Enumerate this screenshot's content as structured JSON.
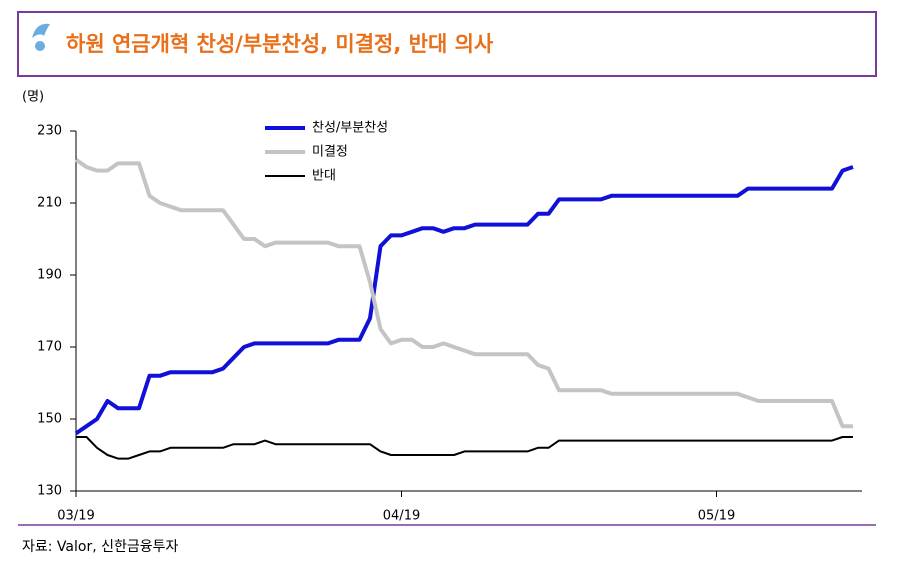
{
  "chart_data": {
    "type": "line",
    "title": "하원 연금개혁 찬성/부분찬성, 미결정, 반대 의사",
    "y_label": "(명)",
    "source": "자료: Valor, 신한금융투자",
    "categories": [
      "03/19",
      null,
      null,
      null,
      null,
      null,
      null,
      null,
      null,
      null,
      null,
      null,
      null,
      null,
      null,
      null,
      null,
      null,
      null,
      null,
      null,
      null,
      null,
      null,
      null,
      null,
      null,
      null,
      null,
      null,
      null,
      "04/19",
      null,
      null,
      null,
      null,
      null,
      null,
      null,
      null,
      null,
      null,
      null,
      null,
      null,
      null,
      null,
      null,
      null,
      null,
      null,
      null,
      null,
      null,
      null,
      null,
      null,
      null,
      null,
      null,
      null,
      "05/19",
      null,
      null,
      null,
      null,
      null,
      null,
      null,
      null,
      null,
      null,
      null,
      null,
      null
    ],
    "series": [
      {
        "name": "찬성/부분찬성",
        "color": "#1010d8",
        "width": 4,
        "values": [
          146,
          148,
          150,
          155,
          153,
          153,
          153,
          162,
          162,
          163,
          163,
          163,
          163,
          163,
          164,
          167,
          170,
          171,
          171,
          171,
          171,
          171,
          171,
          171,
          171,
          172,
          172,
          172,
          178,
          198,
          201,
          201,
          202,
          203,
          203,
          202,
          203,
          203,
          204,
          204,
          204,
          204,
          204,
          204,
          207,
          207,
          211,
          211,
          211,
          211,
          211,
          212,
          212,
          212,
          212,
          212,
          212,
          212,
          212,
          212,
          212,
          212,
          212,
          212,
          214,
          214,
          214,
          214,
          214,
          214,
          214,
          214,
          214,
          219,
          220
        ]
      },
      {
        "name": "미결정",
        "color": "#c4c4c4",
        "width": 4,
        "values": [
          222,
          220,
          219,
          219,
          221,
          221,
          221,
          212,
          210,
          209,
          208,
          208,
          208,
          208,
          208,
          204,
          200,
          200,
          198,
          199,
          199,
          199,
          199,
          199,
          199,
          198,
          198,
          198,
          188,
          175,
          171,
          172,
          172,
          170,
          170,
          171,
          170,
          169,
          168,
          168,
          168,
          168,
          168,
          168,
          165,
          164,
          158,
          158,
          158,
          158,
          158,
          157,
          157,
          157,
          157,
          157,
          157,
          157,
          157,
          157,
          157,
          157,
          157,
          157,
          156,
          155,
          155,
          155,
          155,
          155,
          155,
          155,
          155,
          148,
          148
        ]
      },
      {
        "name": "반대",
        "color": "#000000",
        "width": 2,
        "values": [
          145,
          145,
          142,
          140,
          139,
          139,
          140,
          141,
          141,
          142,
          142,
          142,
          142,
          142,
          142,
          143,
          143,
          143,
          144,
          143,
          143,
          143,
          143,
          143,
          143,
          143,
          143,
          143,
          143,
          141,
          140,
          140,
          140,
          140,
          140,
          140,
          140,
          141,
          141,
          141,
          141,
          141,
          141,
          141,
          142,
          142,
          144,
          144,
          144,
          144,
          144,
          144,
          144,
          144,
          144,
          144,
          144,
          144,
          144,
          144,
          144,
          144,
          144,
          144,
          144,
          144,
          144,
          144,
          144,
          144,
          144,
          144,
          144,
          145,
          145
        ]
      }
    ],
    "ylim": [
      130,
      230
    ],
    "yticks": [
      130,
      150,
      170,
      190,
      210,
      230
    ]
  }
}
